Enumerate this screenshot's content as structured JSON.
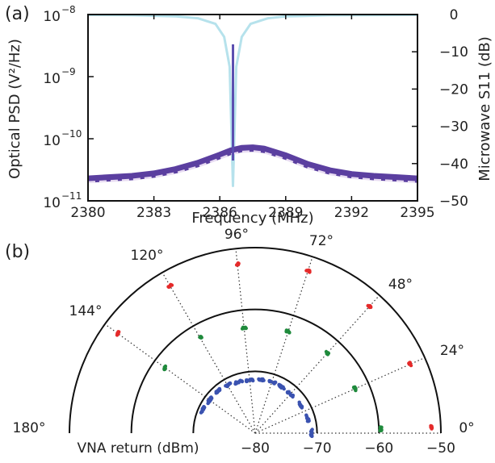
{
  "panel_a_label": "(a)",
  "panel_b_label": "(b)",
  "colors": {
    "psd_noisy": "#5b3fa0",
    "psd_fit": "#e8dcf2",
    "s11": "#b6e2ec",
    "peak": "#5b4fb0",
    "ring_80": "#3a52b0",
    "ring_70": "#1f8a3c",
    "ring_60": "#e52a2a"
  },
  "chart_data": [
    {
      "type": "line",
      "title": "",
      "xlabel": "Frequency (MHz)",
      "ylabel": "Optical PSD (V²/Hz)",
      "y2label": "Microwave S11 (dB)",
      "xlim": [
        2380,
        2395
      ],
      "ylim_log10": [
        -11,
        -8
      ],
      "y2lim": [
        -50,
        0
      ],
      "x_ticks": [
        "2380",
        "2383",
        "2386",
        "2389",
        "2392",
        "2395"
      ],
      "y_ticks": [
        {
          "base": "10",
          "exp": "−11",
          "value": -11
        },
        {
          "base": "10",
          "exp": "−10",
          "value": -10
        },
        {
          "base": "10",
          "exp": "−9",
          "value": -9
        },
        {
          "base": "10",
          "exp": "−8",
          "value": -8
        }
      ],
      "y2_ticks": [
        "0",
        "−10",
        "−20",
        "−30",
        "−40",
        "−50"
      ],
      "series": [
        {
          "kind": "optical_psd_measured",
          "x": [
            2380,
            2381,
            2382,
            2383,
            2384,
            2385,
            2386,
            2386.5,
            2387,
            2387.5,
            2388,
            2389,
            2390,
            2391,
            2392,
            2393,
            2394,
            2395
          ],
          "y_log10": [
            -10.65,
            -10.63,
            -10.61,
            -10.57,
            -10.5,
            -10.4,
            -10.27,
            -10.2,
            -10.16,
            -10.15,
            -10.17,
            -10.28,
            -10.42,
            -10.52,
            -10.58,
            -10.61,
            -10.63,
            -10.65
          ]
        },
        {
          "kind": "optical_psd_fit",
          "x": [
            2380,
            2381,
            2382,
            2383,
            2384,
            2385,
            2386,
            2386.5,
            2387,
            2387.5,
            2388,
            2389,
            2390,
            2391,
            2392,
            2393,
            2394,
            2395
          ],
          "y_log10": [
            -10.7,
            -10.68,
            -10.66,
            -10.62,
            -10.55,
            -10.45,
            -10.32,
            -10.25,
            -10.21,
            -10.2,
            -10.22,
            -10.33,
            -10.47,
            -10.57,
            -10.63,
            -10.66,
            -10.68,
            -10.7
          ]
        },
        {
          "kind": "microwave_s11",
          "x": [
            2380,
            2382,
            2384,
            2385,
            2385.8,
            2386.2,
            2386.45,
            2386.6,
            2386.75,
            2387,
            2387.4,
            2388.2,
            2389,
            2391,
            2393,
            2395
          ],
          "y": [
            -0.1,
            -0.2,
            -0.5,
            -1,
            -2.5,
            -6,
            -14,
            -46,
            -14,
            -6,
            -2.5,
            -1,
            -0.5,
            -0.2,
            -0.15,
            -0.1
          ]
        },
        {
          "kind": "pump_peak",
          "x": [
            2386.6,
            2386.6
          ],
          "y_log10": [
            -10.35,
            -8.48
          ]
        }
      ]
    },
    {
      "type": "scatter",
      "subtype": "polar",
      "rlabel": "VNA return (dBm)",
      "r_ticks": [
        "−80",
        "−70",
        "−60",
        "−50"
      ],
      "r_range": [
        -80,
        -50
      ],
      "angle_ticks": [
        "180°",
        "144°",
        "120°",
        "96°",
        "72°",
        "48°",
        "24°",
        "0°"
      ],
      "rays_deg": [
        0,
        24,
        48,
        72,
        96,
        120,
        144
      ],
      "series": [
        {
          "kind": "ring_-80",
          "points": [
            {
              "angle": 0,
              "r": -70.9
            },
            {
              "angle": 16,
              "r": -71.2
            },
            {
              "angle": 32,
              "r": -71.4
            },
            {
              "angle": 48,
              "r": -71.5
            },
            {
              "angle": 60,
              "r": -71.4
            },
            {
              "angle": 72,
              "r": -71.3
            },
            {
              "angle": 84,
              "r": -71.3
            },
            {
              "angle": 96,
              "r": -71.4
            },
            {
              "angle": 108,
              "r": -71.3
            },
            {
              "angle": 120,
              "r": -71.1
            },
            {
              "angle": 132,
              "r": -70.9
            },
            {
              "angle": 144,
              "r": -70.9
            },
            {
              "angle": 156,
              "r": -70.7
            }
          ]
        },
        {
          "kind": "ring_-70",
          "points": [
            {
              "angle": 2,
              "r": -59.7
            },
            {
              "angle": 24,
              "r": -62.3
            },
            {
              "angle": 48,
              "r": -62.6
            },
            {
              "angle": 72,
              "r": -62.7
            },
            {
              "angle": 96,
              "r": -62.9
            },
            {
              "angle": 120,
              "r": -62.2
            },
            {
              "angle": 144,
              "r": -62.0
            }
          ]
        },
        {
          "kind": "ring_-60",
          "points": [
            {
              "angle": 2,
              "r": -51.5
            },
            {
              "angle": 24,
              "r": -52.6
            },
            {
              "angle": 48,
              "r": -52.4
            },
            {
              "angle": 72,
              "r": -52.4
            },
            {
              "angle": 96,
              "r": -52.5
            },
            {
              "angle": 120,
              "r": -52.5
            },
            {
              "angle": 144,
              "r": -52.6
            }
          ]
        }
      ]
    }
  ]
}
